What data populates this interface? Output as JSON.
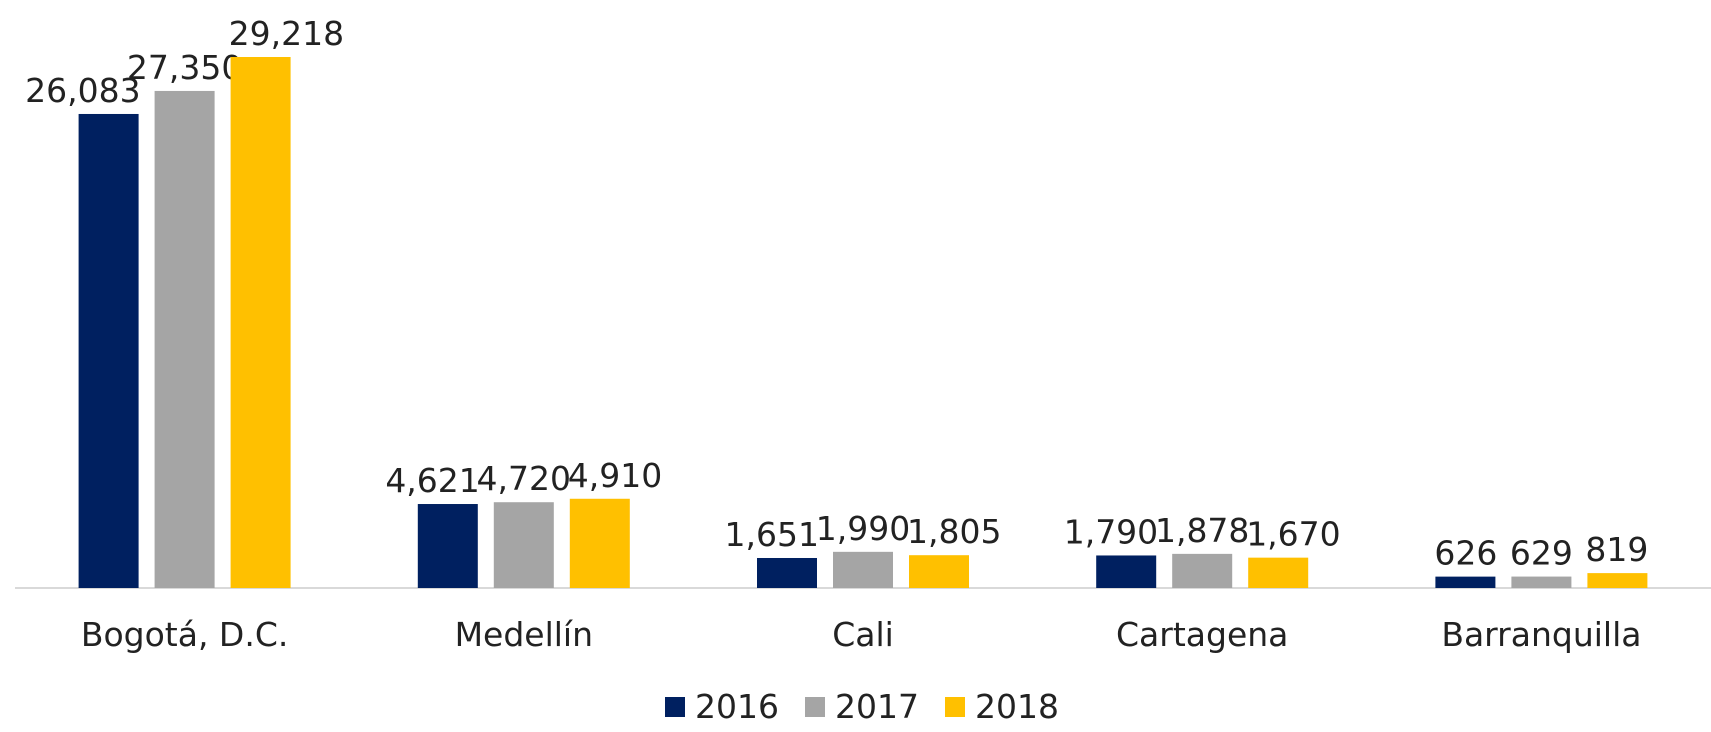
{
  "chart_data": {
    "type": "bar",
    "categories": [
      "Bogotá, D.C.",
      "Medellín",
      "Cali",
      "Cartagena",
      "Barranquilla"
    ],
    "series": [
      {
        "name": "2016",
        "color": "#002060",
        "values": [
          26083,
          4621,
          1651,
          1790,
          626
        ],
        "value_labels": [
          "26,083",
          "4,621",
          "1,651",
          "1,790",
          "626"
        ]
      },
      {
        "name": "2017",
        "color": "#a5a5a5",
        "values": [
          27350,
          4720,
          1990,
          1878,
          629
        ],
        "value_labels": [
          "27,350",
          "4,720",
          "1,990",
          "1,878",
          "629"
        ]
      },
      {
        "name": "2018",
        "color": "#ffc000",
        "values": [
          29218,
          4910,
          1805,
          1670,
          819
        ],
        "value_labels": [
          "29,218",
          "4,910",
          "1,805",
          "1,670",
          "819"
        ]
      }
    ],
    "legend": "bottom"
  }
}
